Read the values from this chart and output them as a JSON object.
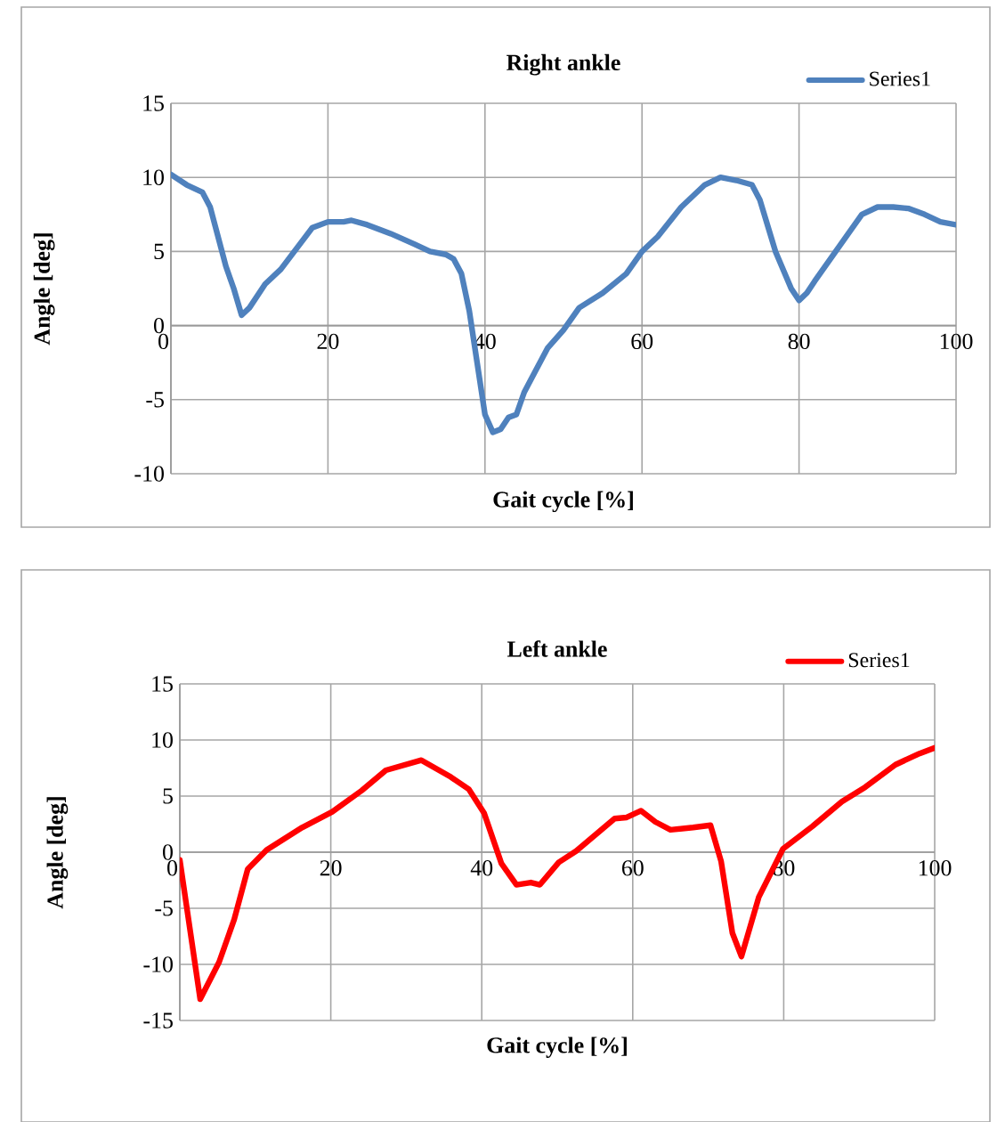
{
  "chart_data": [
    {
      "type": "line",
      "title": "Right ankle",
      "xlabel": "Gait cycle [%]",
      "ylabel": "Angle [deg]",
      "xlim": [
        0,
        100
      ],
      "ylim": [
        -10,
        15
      ],
      "xticks": [
        0,
        20,
        40,
        60,
        80,
        100
      ],
      "yticks": [
        -10,
        -5,
        0,
        5,
        10,
        15
      ],
      "grid": true,
      "legend": "top right",
      "marker": "none",
      "line_style": "solid",
      "series": [
        {
          "name": "Series1",
          "color": "#4f81bd",
          "x": [
            0,
            2,
            4,
            5,
            7,
            8,
            9,
            10,
            12,
            14,
            16,
            18,
            20,
            22,
            23,
            25,
            28,
            31,
            33,
            35,
            36,
            37,
            38,
            39,
            40,
            41,
            42,
            43,
            44,
            45,
            46,
            48,
            50,
            52,
            55,
            58,
            60,
            62,
            65,
            67,
            68,
            70,
            72,
            74,
            75,
            77,
            79,
            80,
            81,
            82,
            84,
            86,
            88,
            90,
            92,
            94,
            96,
            98,
            100
          ],
          "values": [
            10.2,
            9.5,
            9,
            8,
            4,
            2.5,
            0.7,
            1.2,
            2.8,
            3.8,
            5.2,
            6.6,
            7,
            7,
            7.1,
            6.8,
            6.2,
            5.5,
            5,
            4.8,
            4.5,
            3.5,
            1,
            -2.5,
            -6,
            -7.2,
            -7,
            -6.2,
            -6,
            -4.5,
            -3.5,
            -1.5,
            -0.3,
            1.2,
            2.2,
            3.5,
            5,
            6,
            8,
            9,
            9.5,
            10,
            9.8,
            9.5,
            8.5,
            5,
            2.5,
            1.7,
            2.2,
            3,
            4.5,
            6,
            7.5,
            8,
            8,
            7.9,
            7.5,
            7,
            6.8
          ]
        }
      ]
    },
    {
      "type": "line",
      "title": "Left ankle",
      "xlabel": "Gait cycle [%]",
      "ylabel": "Angle [deg]",
      "xlim": [
        0,
        100
      ],
      "ylim": [
        -15,
        15
      ],
      "xticks": [
        0,
        20,
        40,
        60,
        80,
        100
      ],
      "yticks": [
        -15,
        -10,
        -5,
        0,
        5,
        10,
        15
      ],
      "grid": true,
      "legend": "top right",
      "marker": "none",
      "line_style": "solid",
      "series": [
        {
          "name": "Series1",
          "color": "#ff0000",
          "x": [
            0,
            2.7,
            5.2,
            7.2,
            9,
            11.5,
            16.2,
            20.2,
            24.1,
            27.3,
            32,
            35.9,
            38.3,
            40.3,
            42.6,
            44.6,
            46.5,
            47.7,
            50.2,
            52.5,
            57.6,
            59.2,
            61.1,
            63,
            65,
            68,
            70.3,
            71.7,
            73.2,
            74.4,
            76.7,
            79.9,
            83.8,
            87.7,
            90.8,
            94.8,
            98,
            100
          ],
          "values": [
            -0.7,
            -13.1,
            -9.8,
            -6,
            -1.5,
            0.2,
            2.2,
            3.6,
            5.5,
            7.3,
            8.2,
            6.7,
            5.6,
            3.5,
            -1,
            -2.9,
            -2.7,
            -2.9,
            -0.9,
            0.1,
            3,
            3.1,
            3.7,
            2.7,
            2,
            2.2,
            2.4,
            -0.8,
            -7.2,
            -9.3,
            -4,
            0.3,
            2.3,
            4.5,
            5.8,
            7.8,
            8.8,
            9.3
          ]
        }
      ]
    }
  ]
}
